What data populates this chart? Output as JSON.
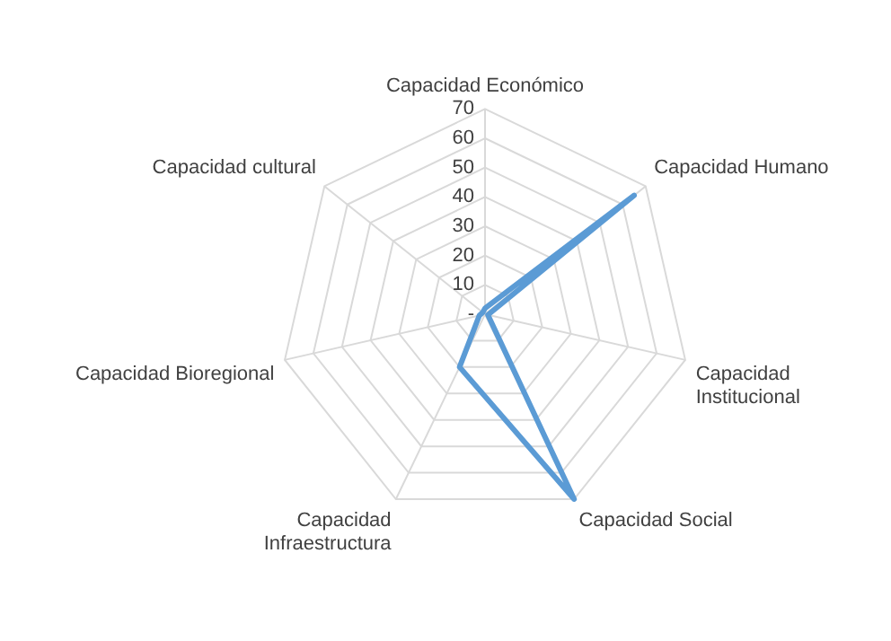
{
  "chart_data": {
    "type": "radar",
    "categories": [
      "Capacidad Económico",
      "Capacidad Humano",
      "Capacidad Institucional",
      "Capacidad Social",
      "Capacidad Infraestructura",
      "Capacidad Bioregional",
      "Capacidad cultural"
    ],
    "series": [
      {
        "color": "#5b9bd5",
        "values": [
          2,
          65,
          1,
          70,
          20,
          2,
          1
        ]
      }
    ],
    "ylim": [
      0,
      70
    ],
    "yticks": [
      {
        "value": 0,
        "label": "-"
      },
      10,
      20,
      30,
      40,
      50,
      60,
      70
    ],
    "grid": true,
    "legend": false,
    "marker": "none",
    "line_style": "solid"
  }
}
